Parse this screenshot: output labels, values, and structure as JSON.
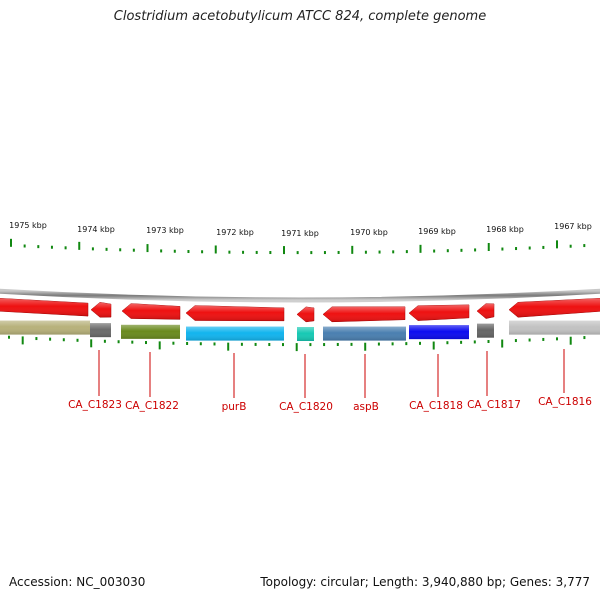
{
  "title": "Clostridium acetobutylicum ATCC 824, complete genome",
  "scale_labels": [
    "1975 kbp",
    "1974 kbp",
    "1973 kbp",
    "1972 kbp",
    "1971 kbp",
    "1970 kbp",
    "1969 kbp",
    "1968 kbp",
    "1967 kbp"
  ],
  "genes": [
    {
      "name": "CA_C1823",
      "color": "#6b6b6b"
    },
    {
      "name": "CA_C1822",
      "color": "#6a8a1e"
    },
    {
      "name": "purB",
      "color": "#12b4ee"
    },
    {
      "name": "CA_C1820",
      "color": "#17c9b4"
    },
    {
      "name": "aspB",
      "color": "#4a7fb0"
    },
    {
      "name": "CA_C1818",
      "color": "#0b0bf0"
    },
    {
      "name": "CA_C1817",
      "color": "#666666"
    },
    {
      "name": "CA_C1816",
      "color": "#c2c2c2"
    }
  ],
  "left_gene_color": "#b7b17a",
  "colors": {
    "cds_strand": "#ee1111",
    "ticks": "#118811",
    "labels": "#cc0000",
    "backbone": "#8a8a8a"
  },
  "footer": {
    "accession": "Accession: NC_003030",
    "topology": "Topology: circular; Length: 3,940,880 bp; Genes: 3,777"
  }
}
